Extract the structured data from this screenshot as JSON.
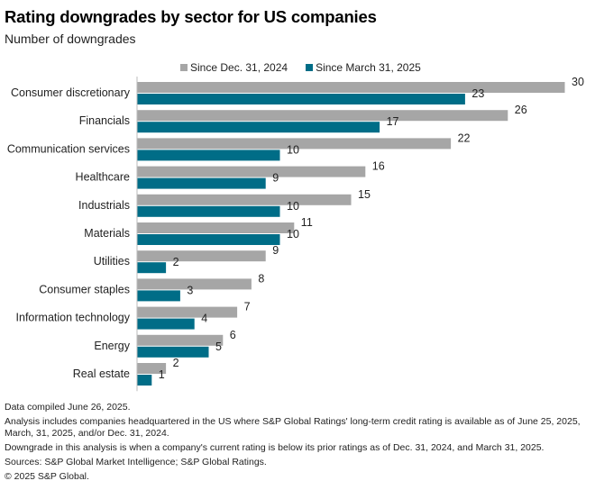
{
  "header": {
    "title": "Rating downgrades by sector for US companies",
    "subtitle": "Number of downgrades"
  },
  "legend": [
    {
      "label": "Since Dec. 31, 2024",
      "color": "#a6a6a6"
    },
    {
      "label": "Since March 31, 2025",
      "color": "#006d87"
    }
  ],
  "chart_data": {
    "type": "bar",
    "orientation": "horizontal",
    "title": "Rating downgrades by sector for US companies",
    "subtitle": "Number of downgrades",
    "xlabel": "",
    "ylabel": "",
    "xlim": [
      0,
      30
    ],
    "grid": false,
    "legend_position": "top",
    "categories": [
      "Consumer discretionary",
      "Financials",
      "Communication services",
      "Healthcare",
      "Industrials",
      "Materials",
      "Utilities",
      "Consumer staples",
      "Information technology",
      "Energy",
      "Real estate"
    ],
    "series": [
      {
        "name": "Since Dec. 31, 2024",
        "color": "#a6a6a6",
        "values": [
          30,
          26,
          22,
          16,
          15,
          11,
          9,
          8,
          7,
          6,
          2
        ]
      },
      {
        "name": "Since March 31, 2025",
        "color": "#006d87",
        "values": [
          23,
          17,
          10,
          9,
          10,
          10,
          2,
          3,
          4,
          5,
          1
        ]
      }
    ]
  },
  "footnotes": [
    "Data compiled June 26, 2025.",
    "Analysis includes companies headquartered in the US where S&P Global Ratings' long-term credit rating is available as of June 25, 2025, March, 31, 2025, and/or Dec. 31, 2024.",
    "Downgrade in this analysis is when a company's current rating is below its prior ratings as of Dec. 31, 2024, and March 31, 2025.",
    "Sources: S&P Global Market Intelligence; S&P Global Ratings.",
    "© 2025 S&P Global."
  ]
}
